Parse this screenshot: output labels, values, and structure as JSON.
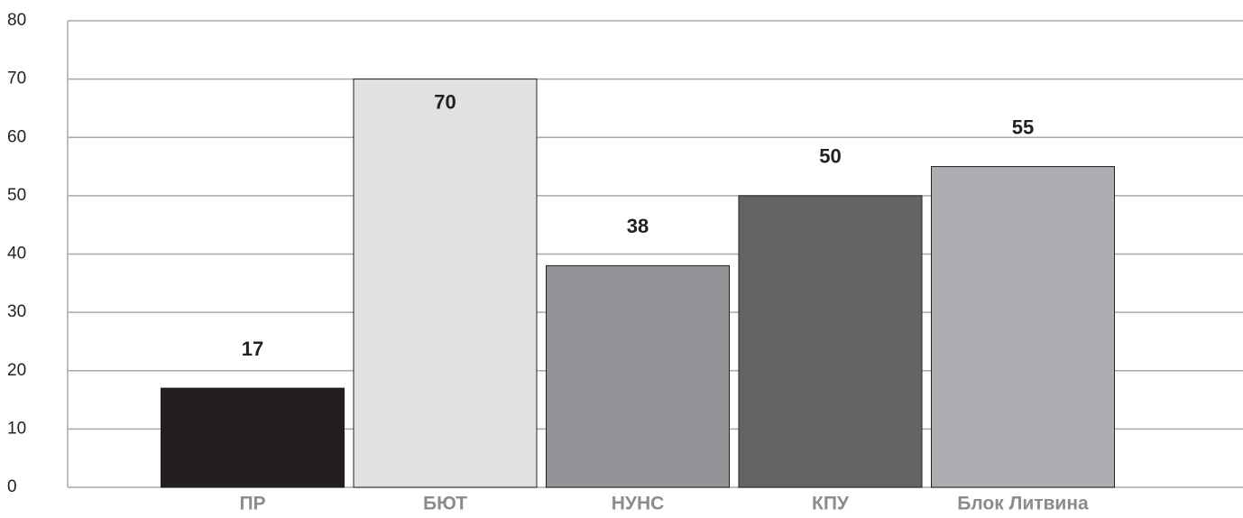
{
  "chart_data": {
    "type": "bar",
    "categories": [
      "ПР",
      "БЮТ",
      "НУНС",
      "КПУ",
      "Блок Литвина"
    ],
    "values": [
      17,
      70,
      38,
      50,
      55
    ],
    "colors": [
      "#231f20",
      "#e0e1e3",
      "#939497",
      "#646466",
      "#adaeb1"
    ],
    "ylim": [
      0,
      80
    ],
    "yticks": [
      0,
      10,
      20,
      30,
      40,
      50,
      60,
      70,
      80
    ],
    "grid": true
  }
}
